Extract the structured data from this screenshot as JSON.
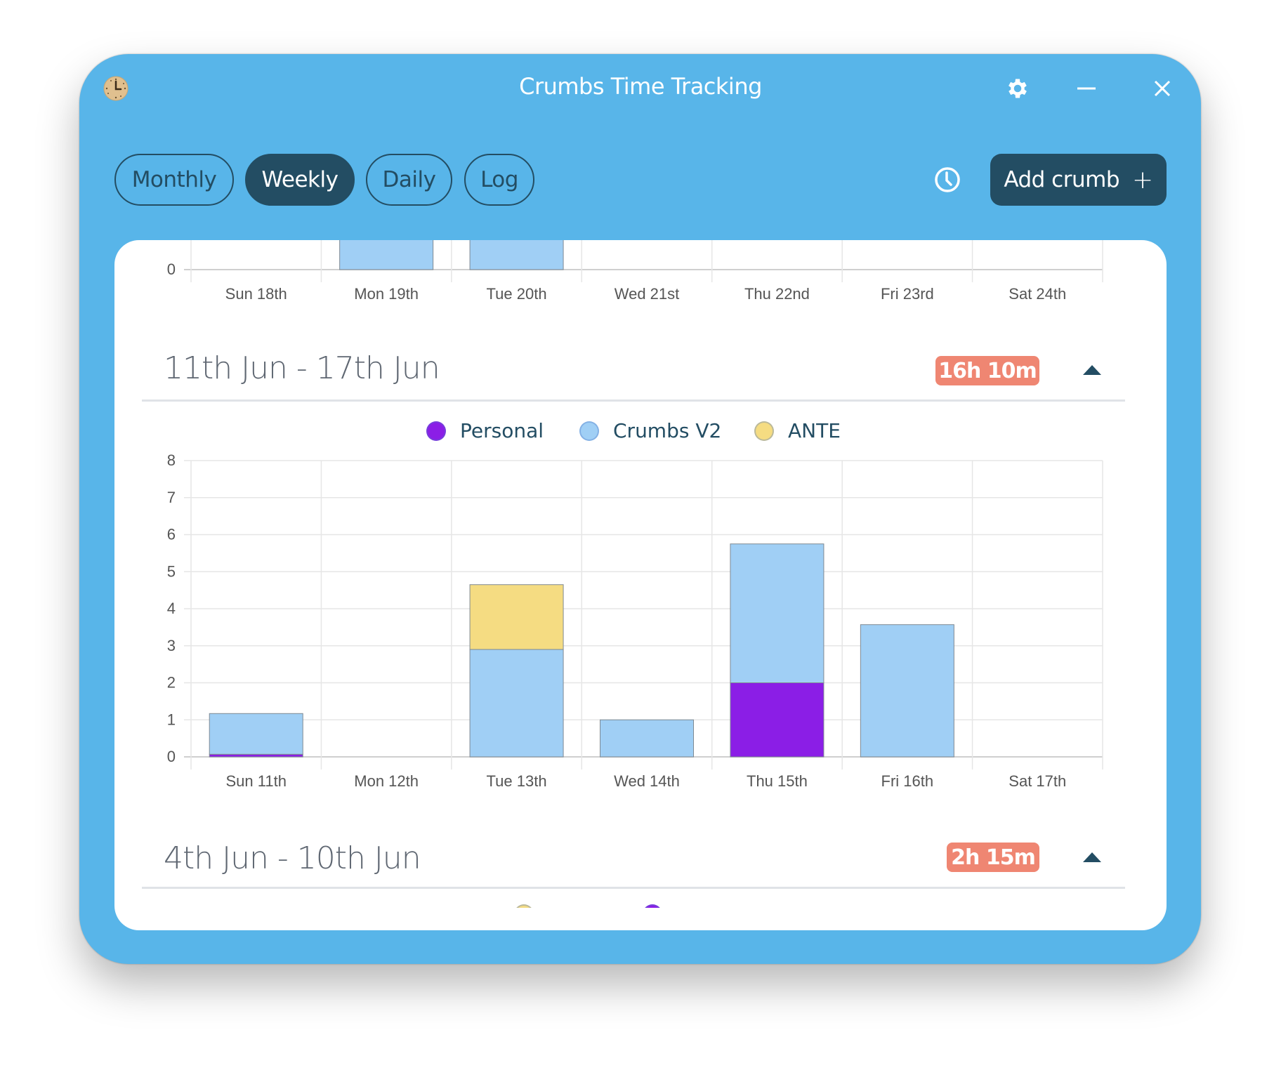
{
  "window": {
    "title": "Crumbs Time Tracking"
  },
  "colors": {
    "background": "#58b5e9",
    "dark": "#234d63",
    "badge": "#ef8672",
    "personal": "#8b1ee6",
    "crumbs_v2": "#a0cff5",
    "ante": "#f5dc82"
  },
  "icons": {
    "app": "clock-app-icon",
    "settings": "gear-icon",
    "minimize": "minimize-icon",
    "close": "close-icon",
    "history": "clock-icon",
    "add": "plus-icon",
    "collapse": "caret-up-icon"
  },
  "tabs": [
    {
      "label": "Monthly",
      "active": false
    },
    {
      "label": "Weekly",
      "active": true
    },
    {
      "label": "Daily",
      "active": false
    },
    {
      "label": "Log",
      "active": false
    }
  ],
  "add_button": {
    "label": "Add crumb",
    "icon": "+"
  },
  "weeks": [
    {
      "title": "11th Jun - 17th Jun",
      "total": "16h 10m"
    },
    {
      "title": "4th Jun - 10th Jun",
      "total": "2h 15m"
    }
  ],
  "chart_data": [
    {
      "type": "bar",
      "stacked": true,
      "categories": [
        "Sun 18th",
        "Mon 19th",
        "Tue 20th",
        "Wed 21st",
        "Thu 22nd",
        "Fri 23rd",
        "Sat 24th"
      ],
      "y_ticks": [
        "0"
      ],
      "series": [
        {
          "color": "#a0cff5",
          "values": [
            0,
            null,
            null,
            0,
            0,
            0,
            0
          ]
        }
      ],
      "grid": true
    },
    {
      "type": "bar",
      "stacked": true,
      "categories": [
        "Sun 11th",
        "Mon 12th",
        "Tue 13th",
        "Wed 14th",
        "Thu 15th",
        "Fri 16th",
        "Sat 17th"
      ],
      "ylim": [
        0,
        8
      ],
      "y_ticks": [
        "0",
        "1",
        "2",
        "3",
        "4",
        "5",
        "6",
        "7",
        "8"
      ],
      "legend_position": "top",
      "grid": true,
      "series": [
        {
          "name": "Personal",
          "color": "#8b1ee6",
          "values": [
            0.07,
            0,
            0,
            0,
            2.0,
            0,
            0
          ]
        },
        {
          "name": "Crumbs V2",
          "color": "#a0cff5",
          "values": [
            1.1,
            0,
            2.9,
            1.0,
            3.75,
            3.57,
            0
          ]
        },
        {
          "name": "ANTE",
          "color": "#f5dc82",
          "values": [
            0,
            0,
            1.75,
            0,
            0,
            0,
            0
          ]
        }
      ]
    }
  ],
  "week2_legend_colors": [
    "#f5dc82",
    "#8b1ee6"
  ]
}
